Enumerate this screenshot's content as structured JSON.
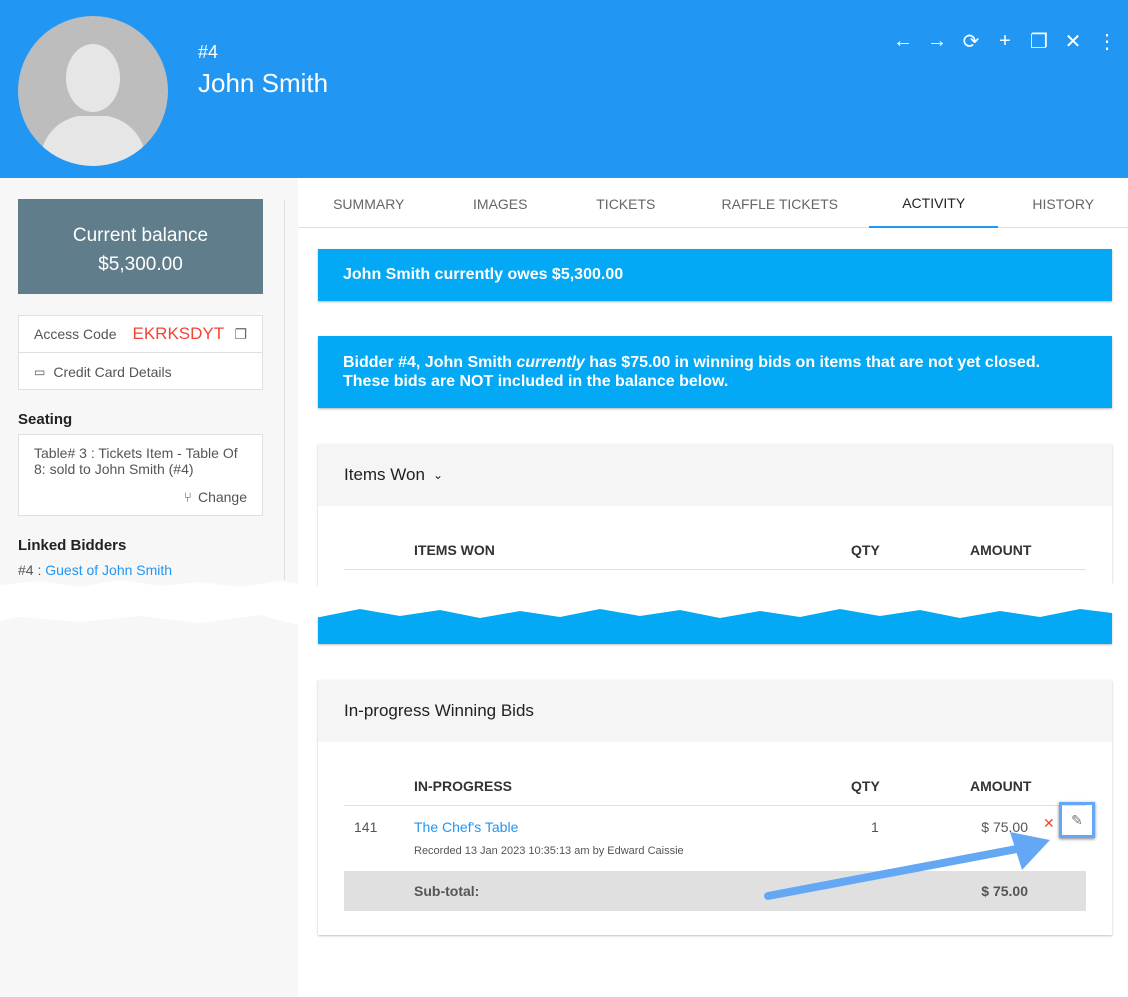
{
  "header": {
    "number": "#4",
    "name": "John Smith",
    "tools": [
      "arrow-left",
      "arrow-right",
      "refresh",
      "add",
      "copy",
      "close",
      "more-vert"
    ]
  },
  "sidebar": {
    "balance_label": "Current balance",
    "balance": "$5,300.00",
    "access_code_label": "Access Code",
    "access_code": "EKRKSDYT",
    "credit_card": "Credit Card Details",
    "seating_title": "Seating",
    "seating_text": "Table# 3 : Tickets Item - Table Of 8: sold to John Smith (#4)",
    "change": "Change",
    "linked_title": "Linked Bidders",
    "linked_prefix": "#4 :",
    "linked_name": "Guest of John Smith"
  },
  "tabs": [
    "SUMMARY",
    "IMAGES",
    "TICKETS",
    "RAFFLE TICKETS",
    "ACTIVITY",
    "HISTORY"
  ],
  "active_tab": "ACTIVITY",
  "banners": {
    "owes": "John Smith currently owes $5,300.00",
    "bids_a": "Bidder #4, John Smith ",
    "bids_em": "currently",
    "bids_b": " has $75.00 in winning bids on items that are not yet closed.",
    "bids_c": "These bids are NOT included in the balance below."
  },
  "items_won": {
    "title": "Items Won",
    "cols": [
      "ITEMS WON",
      "QTY",
      "AMOUNT"
    ]
  },
  "in_progress": {
    "title": "In-progress Winning Bids",
    "cols": [
      "IN-PROGRESS",
      "QTY",
      "AMOUNT"
    ],
    "rows": [
      {
        "id": "141",
        "item": "The Chef's Table",
        "recorded": "Recorded 13 Jan 2023 10:35:13 am by Edward Caissie",
        "qty": "1",
        "amount": "$ 75.00"
      }
    ],
    "subtotal_label": "Sub-total:",
    "subtotal": "$ 75.00"
  },
  "colors": {
    "header": "#2196F3",
    "banner": "#03A9F4",
    "balance": "#607D8B",
    "access_code": "#F44336",
    "link": "#2196F3",
    "annotation": "#64A8F5"
  }
}
